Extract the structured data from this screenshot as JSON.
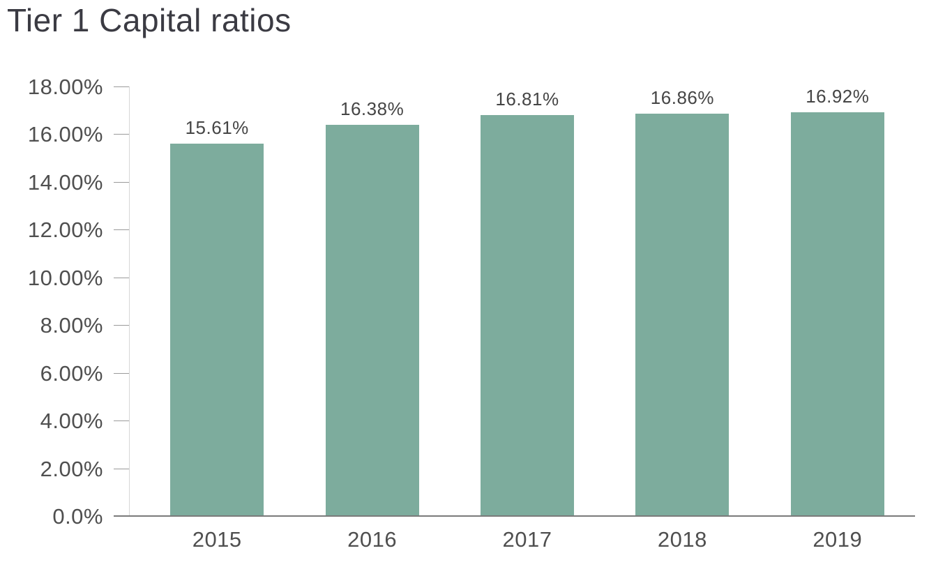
{
  "chart_data": {
    "type": "bar",
    "title": "Tier 1 Capital ratios",
    "categories": [
      "2015",
      "2016",
      "2017",
      "2018",
      "2019"
    ],
    "values": [
      15.61,
      16.38,
      16.81,
      16.86,
      16.92
    ],
    "value_labels": [
      "15.61%",
      "16.38%",
      "16.81%",
      "16.86%",
      "16.92%"
    ],
    "xlabel": "",
    "ylabel": "",
    "ylim": [
      0,
      18
    ],
    "grid": false,
    "legend_position": "none",
    "yticks": [
      {
        "value": 18,
        "label": "18.00%"
      },
      {
        "value": 16,
        "label": "16.00%"
      },
      {
        "value": 14,
        "label": "14.00%"
      },
      {
        "value": 12,
        "label": "12.00%"
      },
      {
        "value": 10,
        "label": "10.00%"
      },
      {
        "value": 8,
        "label": "8.00%"
      },
      {
        "value": 6,
        "label": "6.00%"
      },
      {
        "value": 4,
        "label": "4.00%"
      },
      {
        "value": 2,
        "label": "2.00%"
      },
      {
        "value": 0,
        "label": "0.0%"
      }
    ],
    "colors": {
      "bar": "#7dac9d",
      "title": "#3b3b43",
      "axis_label": "#4f4f4f",
      "data_label": "#454545",
      "y_axis_line": "#d6d6d6",
      "x_axis_line": "#7a7a7a",
      "tick_mark": "#9a9a9a",
      "background": "#ffffff"
    }
  }
}
